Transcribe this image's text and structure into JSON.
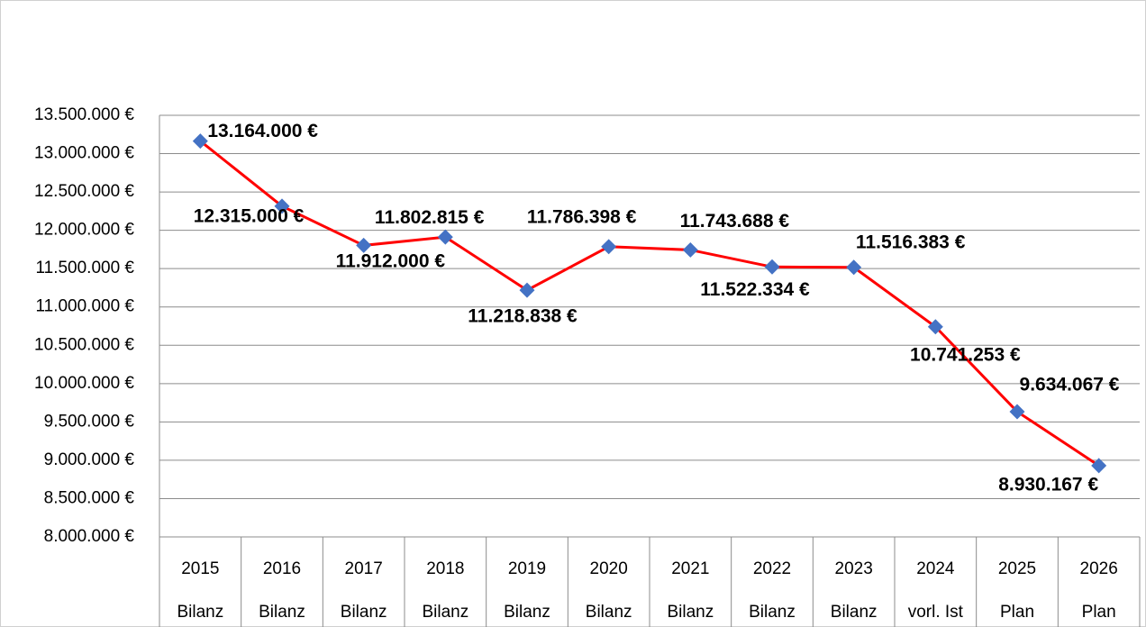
{
  "chart_data": {
    "type": "line",
    "categories": [
      "2015",
      "2016",
      "2017",
      "2018",
      "2019",
      "2020",
      "2021",
      "2022",
      "2023",
      "2024",
      "2025",
      "2026"
    ],
    "sublabels": [
      "Bilanz",
      "Bilanz",
      "Bilanz",
      "Bilanz",
      "Bilanz",
      "Bilanz",
      "Bilanz",
      "Bilanz",
      "Bilanz",
      "vorl. Ist",
      "Plan",
      "Plan"
    ],
    "values": [
      13164000,
      12315000,
      11802815,
      11912000,
      11218838,
      11786398,
      11743688,
      11522334,
      11516383,
      10741253,
      9634067,
      8930167
    ],
    "value_labels": [
      "13.164.000 €",
      "12.315.000 €",
      "11.802.815 €",
      "11.912.000 €",
      "11.218.838 €",
      "11.786.398 €",
      "11.743.688 €",
      "11.522.334 €",
      "11.516.383 €",
      "10.741.253 €",
      "9.634.067 €",
      "8.930.167 €"
    ],
    "color": "#ff0000",
    "marker_color": "#4472c4",
    "ylim": [
      8000000,
      13500000
    ],
    "yticks": [
      {
        "value": 8000000,
        "label": "8.000.000 €"
      },
      {
        "value": 8500000,
        "label": "8.500.000 €"
      },
      {
        "value": 9000000,
        "label": "9.000.000 €"
      },
      {
        "value": 9500000,
        "label": "9.500.000 €"
      },
      {
        "value": 10000000,
        "label": "10.000.000 €"
      },
      {
        "value": 10500000,
        "label": "10.500.000 €"
      },
      {
        "value": 11000000,
        "label": "11.000.000 €"
      },
      {
        "value": 11500000,
        "label": "11.500.000 €"
      },
      {
        "value": 12000000,
        "label": "12.000.000 €"
      },
      {
        "value": 12500000,
        "label": "12.500.000 €"
      },
      {
        "value": 13000000,
        "label": "13.000.000 €"
      },
      {
        "value": 13500000,
        "label": "13.500.000 €"
      }
    ],
    "grid": true
  }
}
